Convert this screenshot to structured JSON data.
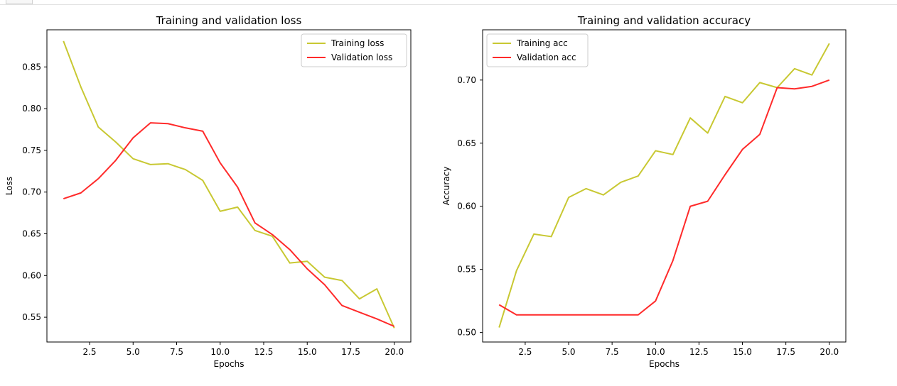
{
  "colors": {
    "training": "#c8c832",
    "validation": "#ff2a2a"
  },
  "chart_data": [
    {
      "type": "line",
      "title": "Training and validation loss",
      "xlabel": "Epochs",
      "ylabel": "Loss",
      "xlim": [
        0.05,
        20.95
      ],
      "ylim": [
        0.5203,
        0.8945
      ],
      "xticks": [
        2.5,
        5.0,
        7.5,
        10.0,
        12.5,
        15.0,
        17.5,
        20.0
      ],
      "xtick_labels": [
        "2.5",
        "5.0",
        "7.5",
        "10.0",
        "12.5",
        "15.0",
        "17.5",
        "20.0"
      ],
      "yticks": [
        0.55,
        0.6,
        0.65,
        0.7,
        0.75,
        0.8,
        0.85
      ],
      "ytick_labels": [
        "0.55",
        "0.60",
        "0.65",
        "0.70",
        "0.75",
        "0.80",
        "0.85"
      ],
      "grid": false,
      "legend_position": "top-right",
      "x": [
        1,
        2,
        3,
        4,
        5,
        6,
        7,
        8,
        9,
        10,
        11,
        12,
        13,
        14,
        15,
        16,
        17,
        18,
        19,
        20
      ],
      "series": [
        {
          "name": "Training loss",
          "color_key": "training",
          "values": [
            0.881,
            0.826,
            0.778,
            0.76,
            0.74,
            0.733,
            0.734,
            0.727,
            0.714,
            0.677,
            0.682,
            0.654,
            0.647,
            0.615,
            0.617,
            0.598,
            0.594,
            0.572,
            0.584,
            0.537
          ]
        },
        {
          "name": "Validation loss",
          "color_key": "validation",
          "values": [
            0.692,
            0.699,
            0.716,
            0.738,
            0.765,
            0.783,
            0.782,
            0.777,
            0.773,
            0.735,
            0.706,
            0.663,
            0.649,
            0.631,
            0.608,
            0.589,
            0.564,
            0.556,
            0.548,
            0.539
          ]
        }
      ]
    },
    {
      "type": "line",
      "title": "Training and validation accuracy",
      "xlabel": "Epochs",
      "ylabel": "Accuracy",
      "xlim": [
        0.05,
        20.95
      ],
      "ylim": [
        0.4925,
        0.7398
      ],
      "xticks": [
        2.5,
        5.0,
        7.5,
        10.0,
        12.5,
        15.0,
        17.5,
        20.0
      ],
      "xtick_labels": [
        "2.5",
        "5.0",
        "7.5",
        "10.0",
        "12.5",
        "15.0",
        "17.5",
        "20.0"
      ],
      "yticks": [
        0.5,
        0.55,
        0.6,
        0.65,
        0.7
      ],
      "ytick_labels": [
        "0.50",
        "0.55",
        "0.60",
        "0.65",
        "0.70"
      ],
      "grid": false,
      "legend_position": "top-left",
      "x": [
        1,
        2,
        3,
        4,
        5,
        6,
        7,
        8,
        9,
        10,
        11,
        12,
        13,
        14,
        15,
        16,
        17,
        18,
        19,
        20
      ],
      "series": [
        {
          "name": "Training acc",
          "color_key": "training",
          "values": [
            0.504,
            0.549,
            0.578,
            0.576,
            0.607,
            0.614,
            0.609,
            0.619,
            0.624,
            0.644,
            0.641,
            0.67,
            0.658,
            0.687,
            0.682,
            0.698,
            0.694,
            0.709,
            0.704,
            0.729
          ]
        },
        {
          "name": "Validation acc",
          "color_key": "validation",
          "values": [
            0.522,
            0.514,
            0.514,
            0.514,
            0.514,
            0.514,
            0.514,
            0.514,
            0.514,
            0.525,
            0.557,
            0.6,
            0.604,
            0.625,
            0.645,
            0.657,
            0.694,
            0.693,
            0.695,
            0.7
          ]
        }
      ]
    }
  ]
}
